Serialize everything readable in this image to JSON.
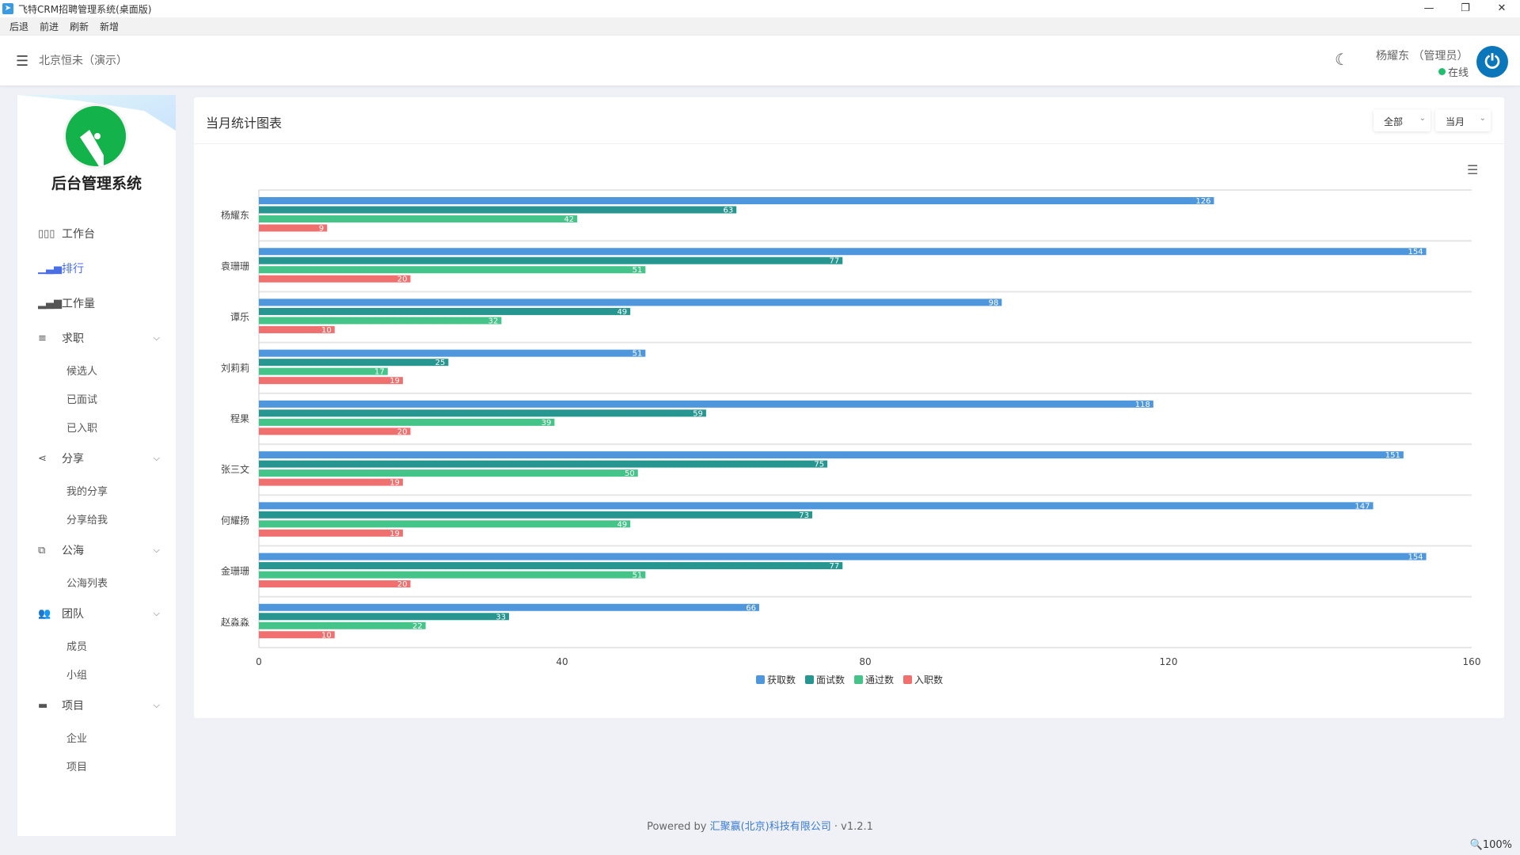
{
  "window": {
    "title": "飞特CRM招聘管理系统(桌面版)",
    "minimize": "—",
    "restore": "❐",
    "close": "✕"
  },
  "menubar": [
    "后退",
    "前进",
    "刷新",
    "新增"
  ],
  "header": {
    "org": "北京恒未（演示）",
    "user": "杨耀东 （管理员）",
    "status": "在线"
  },
  "sidebar": {
    "brand": "后台管理系统",
    "items": [
      {
        "label": "工作台",
        "icon": "bar-chart-icon"
      },
      {
        "label": "排行",
        "icon": "ranking-icon",
        "active": true
      },
      {
        "label": "工作量",
        "icon": "signal-icon"
      },
      {
        "label": "求职",
        "icon": "list-icon",
        "children": [
          "候选人",
          "已面试",
          "已入职"
        ]
      },
      {
        "label": "分享",
        "icon": "share-icon",
        "children": [
          "我的分享",
          "分享给我"
        ]
      },
      {
        "label": "公海",
        "icon": "copy-icon",
        "children": [
          "公海列表"
        ]
      },
      {
        "label": "团队",
        "icon": "users-icon",
        "children": [
          "成员",
          "小组"
        ]
      },
      {
        "label": "项目",
        "icon": "folder-icon",
        "children": [
          "企业",
          "项目"
        ]
      }
    ]
  },
  "card": {
    "title": "当月统计图表",
    "filter1": "全部",
    "filter2": "当月"
  },
  "chart_data": {
    "type": "bar",
    "orientation": "horizontal",
    "categories": [
      "杨耀东",
      "袁珊珊",
      "谭乐",
      "刘莉莉",
      "程果",
      "张三文",
      "何耀扬",
      "金珊珊",
      "赵淼淼"
    ],
    "series": [
      {
        "name": "获取数",
        "color": "#4f97dd",
        "values": [
          126,
          154,
          98,
          51,
          118,
          151,
          147,
          154,
          66
        ]
      },
      {
        "name": "面试数",
        "color": "#279690",
        "values": [
          63,
          77,
          49,
          25,
          59,
          75,
          73,
          77,
          33
        ]
      },
      {
        "name": "通过数",
        "color": "#45c48a",
        "values": [
          42,
          51,
          32,
          17,
          39,
          50,
          49,
          51,
          22
        ]
      },
      {
        "name": "入职数",
        "color": "#f07070",
        "values": [
          9,
          20,
          10,
          19,
          20,
          19,
          19,
          20,
          10
        ]
      }
    ],
    "xlim": [
      0,
      160
    ],
    "xticks": [
      0,
      40,
      80,
      120,
      160
    ],
    "legend": "bottom",
    "grid": true
  },
  "footer": {
    "prefix": "Powered by ",
    "company": "汇聚赢(北京)科技有限公司",
    "suffix": " · v1.2.1"
  },
  "statusbar": {
    "zoom": "100%"
  }
}
